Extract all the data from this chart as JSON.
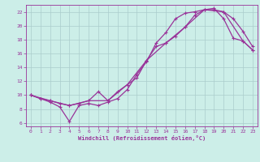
{
  "xlabel": "Windchill (Refroidissement éolien,°C)",
  "xlim": [
    -0.5,
    23.5
  ],
  "ylim": [
    5.5,
    23.0
  ],
  "xticks": [
    0,
    1,
    2,
    3,
    4,
    5,
    6,
    7,
    8,
    9,
    10,
    11,
    12,
    13,
    14,
    15,
    16,
    17,
    18,
    19,
    20,
    21,
    22,
    23
  ],
  "yticks": [
    6,
    8,
    10,
    12,
    14,
    16,
    18,
    20,
    22
  ],
  "bg_color": "#cceee8",
  "grid_color": "#aacccc",
  "line_color": "#993399",
  "curve1_x": [
    0,
    1,
    2,
    3,
    4,
    5,
    6,
    7,
    8,
    9,
    10,
    11,
    12,
    13,
    14,
    15,
    16,
    17,
    18,
    19,
    20,
    21,
    22,
    23
  ],
  "curve1_y": [
    10.0,
    9.5,
    9.0,
    8.3,
    6.2,
    8.5,
    8.8,
    8.5,
    9.0,
    9.5,
    10.8,
    13.0,
    14.8,
    17.5,
    19.0,
    21.0,
    21.8,
    22.0,
    22.3,
    22.5,
    21.0,
    18.2,
    17.8,
    16.5
  ],
  "curve2_x": [
    0,
    1,
    2,
    3,
    4,
    5,
    6,
    7,
    8,
    9,
    10,
    11,
    12,
    13,
    14,
    15,
    16,
    17,
    18,
    19,
    20,
    21,
    22,
    23
  ],
  "curve2_y": [
    10.0,
    9.5,
    9.2,
    8.8,
    8.5,
    8.8,
    9.2,
    10.5,
    9.2,
    10.5,
    11.5,
    12.5,
    15.0,
    17.0,
    17.5,
    18.5,
    19.8,
    21.5,
    22.3,
    22.3,
    22.0,
    21.0,
    19.2,
    17.0
  ],
  "curve3_x": [
    0,
    2,
    4,
    6,
    8,
    10,
    12,
    14,
    16,
    18,
    20,
    22,
    23
  ],
  "curve3_y": [
    10.0,
    9.2,
    8.5,
    9.2,
    9.2,
    11.5,
    15.0,
    17.5,
    19.8,
    22.3,
    22.0,
    17.8,
    16.5
  ],
  "marker": "+"
}
